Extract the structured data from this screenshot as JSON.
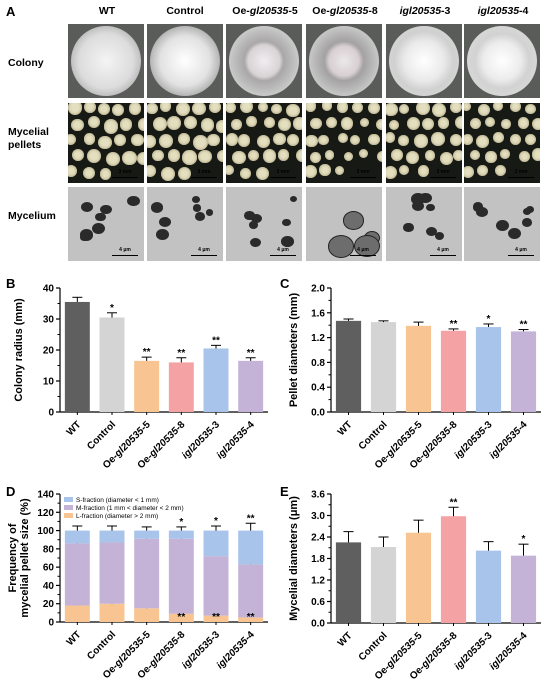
{
  "panel_letters": {
    "a": "A",
    "b": "B",
    "c": "C",
    "d": "D",
    "e": "E"
  },
  "panel_a": {
    "column_headers": [
      {
        "prefix": "WT",
        "italic": "",
        "suffix": ""
      },
      {
        "prefix": "Control",
        "italic": "",
        "suffix": ""
      },
      {
        "prefix": "Oe-",
        "italic": "gl20535",
        "suffix": "-5"
      },
      {
        "prefix": "Oe-",
        "italic": "gl20535",
        "suffix": "-8"
      },
      {
        "prefix": "",
        "italic": "igl20535",
        "suffix": "-3"
      },
      {
        "prefix": "",
        "italic": "igl20535",
        "suffix": "-4"
      }
    ],
    "row_labels": [
      "Colony",
      "Mycelial\npellets",
      "Mycelium"
    ],
    "scalebars": {
      "pellets": "3 mm",
      "mycelium": "4 μm"
    }
  },
  "chart_data": [
    {
      "panel": "B",
      "type": "bar",
      "categories": [
        "WT",
        "Control",
        "Oe-gl20535-5",
        "Oe-gl20535-8",
        "igl20535-3",
        "igl20535-4"
      ],
      "values": [
        35.5,
        30.5,
        16.5,
        16.0,
        20.5,
        16.5
      ],
      "errors": [
        1.5,
        1.5,
        1.2,
        1.5,
        1.0,
        1.0
      ],
      "significance": [
        "",
        "*",
        "**",
        "**",
        "**",
        "**"
      ],
      "colors": [
        "#5f5f5f",
        "#d4d4d4",
        "#f8c592",
        "#f5a2a4",
        "#a9c4ea",
        "#c5b3d7"
      ],
      "ylabel": "Colony radius (mm)",
      "ylim": [
        0,
        40
      ],
      "yticks": [
        0,
        10,
        20,
        30,
        40
      ]
    },
    {
      "panel": "C",
      "type": "bar",
      "categories": [
        "WT",
        "Control",
        "Oe-gl20535-5",
        "Oe-gl20535-8",
        "igl20535-3",
        "igl20535-4"
      ],
      "values": [
        1.47,
        1.45,
        1.39,
        1.31,
        1.37,
        1.3
      ],
      "errors": [
        0.03,
        0.02,
        0.06,
        0.03,
        0.05,
        0.03
      ],
      "significance": [
        "",
        "",
        "",
        "**",
        "*",
        "**"
      ],
      "colors": [
        "#5f5f5f",
        "#d4d4d4",
        "#f8c592",
        "#f5a2a4",
        "#a9c4ea",
        "#c5b3d7"
      ],
      "ylabel": "Pellet diameters (mm)",
      "ylim": [
        0,
        2.0
      ],
      "yticks": [
        0.0,
        0.4,
        0.8,
        1.2,
        1.6,
        2.0
      ],
      "ytick_labels": [
        "0.0",
        "0.4",
        "0.8",
        "1.2",
        "1.6",
        "2.0"
      ]
    },
    {
      "panel": "D",
      "type": "bar",
      "stacked": true,
      "categories": [
        "WT",
        "Control",
        "Oe-gl20535-5",
        "Oe-gl20535-8",
        "igl20535-3",
        "igl20535-4"
      ],
      "series": [
        {
          "name": "S-fraction (diameter < 1 mm)",
          "color": "#a9c4ea",
          "values": [
            14,
            13,
            9,
            9,
            28,
            37
          ],
          "errors": [
            5,
            5,
            4,
            4,
            5,
            8
          ]
        },
        {
          "name": "M-fraction (1 mm < diameter < 2 mm)",
          "color": "#c5b3d7",
          "values": [
            68,
            67,
            76,
            82,
            65,
            58
          ],
          "errors": [
            2,
            2,
            2,
            2,
            5,
            8
          ]
        },
        {
          "name": "L-fraction (diameter > 2 mm)",
          "color": "#f8c592",
          "values": [
            18,
            20,
            15,
            9,
            7,
            5
          ],
          "errors": [
            3,
            4,
            3,
            2,
            2,
            2
          ]
        }
      ],
      "significance": {
        "top": [
          "",
          "",
          "",
          "*",
          "*",
          "**"
        ],
        "bottom": [
          "",
          "",
          "",
          "**",
          "**",
          "**"
        ]
      },
      "ylabel": "Frequency of\nmycelial pellet size (%)",
      "ylim": [
        0,
        140
      ],
      "yticks": [
        0,
        20,
        40,
        60,
        80,
        100,
        120,
        140
      ],
      "legend_position": "top-left"
    },
    {
      "panel": "E",
      "type": "bar",
      "categories": [
        "WT",
        "Control",
        "Oe-gl20535-5",
        "Oe-gl20535-8",
        "igl20535-3",
        "igl20535-4"
      ],
      "values": [
        2.25,
        2.12,
        2.52,
        2.98,
        2.02,
        1.88
      ],
      "errors": [
        0.3,
        0.28,
        0.35,
        0.25,
        0.25,
        0.32
      ],
      "significance": [
        "",
        "",
        "",
        "**",
        "",
        "*"
      ],
      "colors": [
        "#5f5f5f",
        "#d4d4d4",
        "#f8c592",
        "#f5a2a4",
        "#a9c4ea",
        "#c5b3d7"
      ],
      "ylabel": "Mycelial diameters (μm)",
      "ylim": [
        0,
        3.6
      ],
      "yticks": [
        0.0,
        0.6,
        1.2,
        1.8,
        2.4,
        3.0,
        3.6
      ],
      "ytick_labels": [
        "0.0",
        "0.6",
        "1.2",
        "1.8",
        "2.4",
        "3.0",
        "3.6"
      ]
    }
  ]
}
